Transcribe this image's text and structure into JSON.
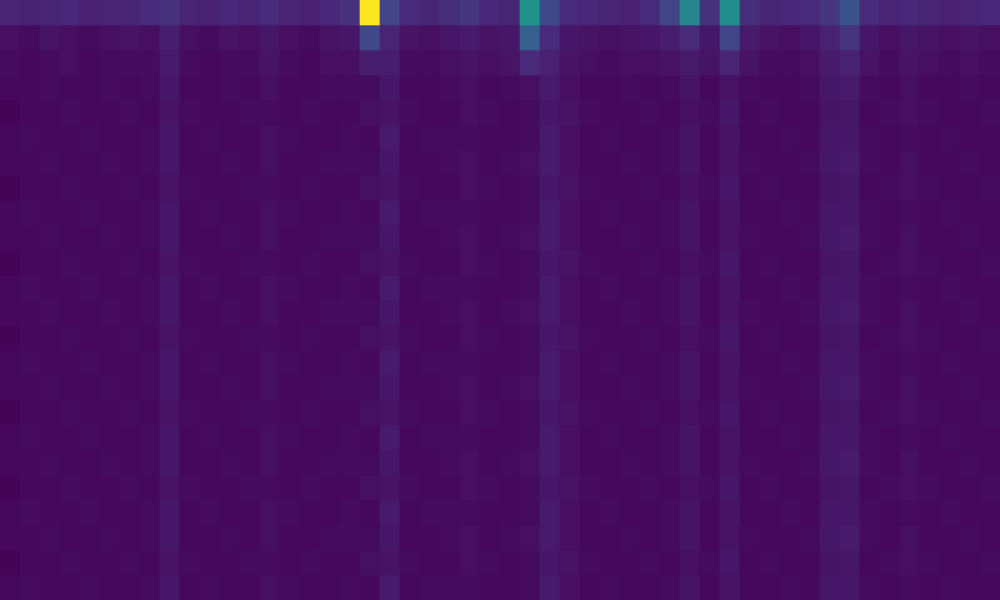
{
  "chart_data": {
    "type": "heatmap",
    "color": "viridis",
    "color_range": [
      0,
      1
    ],
    "tick_labels": false,
    "grid": false,
    "cells": [
      [
        0.1,
        0.09,
        0.1,
        0.11,
        0.09,
        0.1,
        0.1,
        0.12,
        0.14,
        0.1,
        0.09,
        0.11,
        0.1,
        0.12,
        0.1,
        0.09,
        0.11,
        0.14,
        1.0,
        0.2,
        0.12,
        0.1,
        0.13,
        0.15,
        0.11,
        0.1,
        0.5,
        0.22,
        0.12,
        0.11,
        0.1,
        0.09,
        0.12,
        0.2,
        0.45,
        0.14,
        0.48,
        0.13,
        0.1,
        0.11,
        0.12,
        0.16,
        0.25,
        0.12,
        0.1,
        0.11,
        0.1,
        0.09,
        0.1,
        0.11
      ],
      [
        0.04,
        0.03,
        0.05,
        0.04,
        0.03,
        0.04,
        0.05,
        0.04,
        0.08,
        0.04,
        0.03,
        0.05,
        0.04,
        0.06,
        0.04,
        0.03,
        0.05,
        0.06,
        0.22,
        0.1,
        0.05,
        0.04,
        0.06,
        0.07,
        0.05,
        0.06,
        0.3,
        0.12,
        0.06,
        0.05,
        0.04,
        0.05,
        0.06,
        0.08,
        0.12,
        0.06,
        0.2,
        0.07,
        0.05,
        0.04,
        0.06,
        0.09,
        0.15,
        0.06,
        0.04,
        0.06,
        0.05,
        0.04,
        0.05,
        0.04
      ],
      [
        0.03,
        0.02,
        0.03,
        0.04,
        0.02,
        0.03,
        0.03,
        0.03,
        0.07,
        0.03,
        0.02,
        0.03,
        0.03,
        0.05,
        0.03,
        0.02,
        0.04,
        0.04,
        0.08,
        0.08,
        0.03,
        0.03,
        0.04,
        0.05,
        0.04,
        0.05,
        0.12,
        0.09,
        0.05,
        0.04,
        0.03,
        0.04,
        0.04,
        0.05,
        0.07,
        0.05,
        0.1,
        0.05,
        0.03,
        0.03,
        0.04,
        0.07,
        0.09,
        0.05,
        0.03,
        0.05,
        0.04,
        0.03,
        0.04,
        0.03
      ],
      [
        0.02,
        0.02,
        0.03,
        0.02,
        0.02,
        0.03,
        0.02,
        0.03,
        0.06,
        0.02,
        0.02,
        0.03,
        0.02,
        0.04,
        0.02,
        0.02,
        0.03,
        0.03,
        0.03,
        0.06,
        0.02,
        0.02,
        0.03,
        0.04,
        0.02,
        0.03,
        0.04,
        0.07,
        0.04,
        0.02,
        0.02,
        0.03,
        0.02,
        0.03,
        0.05,
        0.02,
        0.05,
        0.03,
        0.02,
        0.02,
        0.03,
        0.06,
        0.07,
        0.03,
        0.02,
        0.04,
        0.02,
        0.02,
        0.03,
        0.02
      ],
      [
        0.01,
        0.02,
        0.02,
        0.03,
        0.02,
        0.02,
        0.03,
        0.02,
        0.05,
        0.03,
        0.02,
        0.02,
        0.03,
        0.03,
        0.02,
        0.03,
        0.02,
        0.02,
        0.04,
        0.05,
        0.03,
        0.02,
        0.02,
        0.04,
        0.03,
        0.02,
        0.03,
        0.06,
        0.05,
        0.03,
        0.02,
        0.02,
        0.03,
        0.02,
        0.04,
        0.03,
        0.06,
        0.02,
        0.03,
        0.02,
        0.02,
        0.05,
        0.06,
        0.02,
        0.03,
        0.04,
        0.03,
        0.02,
        0.02,
        0.03
      ],
      [
        0.02,
        0.03,
        0.02,
        0.02,
        0.03,
        0.02,
        0.02,
        0.03,
        0.06,
        0.02,
        0.03,
        0.02,
        0.02,
        0.04,
        0.03,
        0.02,
        0.02,
        0.03,
        0.02,
        0.07,
        0.02,
        0.03,
        0.03,
        0.03,
        0.02,
        0.02,
        0.03,
        0.07,
        0.04,
        0.02,
        0.03,
        0.02,
        0.02,
        0.03,
        0.05,
        0.02,
        0.05,
        0.02,
        0.02,
        0.03,
        0.02,
        0.06,
        0.06,
        0.03,
        0.02,
        0.03,
        0.02,
        0.03,
        0.02,
        0.02
      ],
      [
        0.02,
        0.02,
        0.03,
        0.02,
        0.02,
        0.03,
        0.02,
        0.03,
        0.06,
        0.02,
        0.02,
        0.03,
        0.02,
        0.04,
        0.02,
        0.02,
        0.03,
        0.03,
        0.03,
        0.06,
        0.02,
        0.02,
        0.03,
        0.04,
        0.02,
        0.03,
        0.04,
        0.07,
        0.04,
        0.02,
        0.02,
        0.03,
        0.02,
        0.03,
        0.05,
        0.02,
        0.05,
        0.03,
        0.02,
        0.02,
        0.03,
        0.06,
        0.07,
        0.03,
        0.02,
        0.04,
        0.02,
        0.02,
        0.03,
        0.02
      ],
      [
        0.01,
        0.02,
        0.02,
        0.03,
        0.02,
        0.02,
        0.03,
        0.02,
        0.05,
        0.03,
        0.02,
        0.02,
        0.03,
        0.03,
        0.02,
        0.03,
        0.02,
        0.02,
        0.04,
        0.05,
        0.03,
        0.02,
        0.02,
        0.04,
        0.03,
        0.02,
        0.03,
        0.06,
        0.05,
        0.03,
        0.02,
        0.02,
        0.03,
        0.02,
        0.04,
        0.03,
        0.06,
        0.02,
        0.03,
        0.02,
        0.02,
        0.05,
        0.06,
        0.02,
        0.03,
        0.04,
        0.03,
        0.02,
        0.02,
        0.03
      ],
      [
        0.02,
        0.03,
        0.02,
        0.02,
        0.03,
        0.02,
        0.02,
        0.03,
        0.06,
        0.02,
        0.03,
        0.02,
        0.02,
        0.04,
        0.03,
        0.02,
        0.02,
        0.03,
        0.02,
        0.07,
        0.02,
        0.03,
        0.03,
        0.03,
        0.02,
        0.02,
        0.03,
        0.07,
        0.04,
        0.02,
        0.03,
        0.02,
        0.02,
        0.03,
        0.05,
        0.02,
        0.05,
        0.02,
        0.02,
        0.03,
        0.02,
        0.06,
        0.06,
        0.03,
        0.02,
        0.03,
        0.02,
        0.03,
        0.02,
        0.02
      ],
      [
        0.02,
        0.02,
        0.03,
        0.02,
        0.02,
        0.03,
        0.02,
        0.03,
        0.06,
        0.02,
        0.02,
        0.03,
        0.02,
        0.04,
        0.02,
        0.02,
        0.03,
        0.03,
        0.03,
        0.06,
        0.02,
        0.02,
        0.03,
        0.04,
        0.02,
        0.03,
        0.04,
        0.07,
        0.04,
        0.02,
        0.02,
        0.03,
        0.02,
        0.03,
        0.05,
        0.02,
        0.05,
        0.03,
        0.02,
        0.02,
        0.03,
        0.06,
        0.07,
        0.03,
        0.02,
        0.04,
        0.02,
        0.02,
        0.03,
        0.02
      ],
      [
        0.01,
        0.02,
        0.02,
        0.03,
        0.02,
        0.02,
        0.03,
        0.02,
        0.05,
        0.03,
        0.02,
        0.02,
        0.03,
        0.03,
        0.02,
        0.03,
        0.02,
        0.02,
        0.04,
        0.05,
        0.03,
        0.02,
        0.02,
        0.04,
        0.03,
        0.02,
        0.03,
        0.06,
        0.05,
        0.03,
        0.02,
        0.02,
        0.03,
        0.02,
        0.04,
        0.03,
        0.06,
        0.02,
        0.03,
        0.02,
        0.02,
        0.05,
        0.06,
        0.02,
        0.03,
        0.04,
        0.03,
        0.02,
        0.02,
        0.03
      ],
      [
        0.02,
        0.03,
        0.02,
        0.02,
        0.03,
        0.02,
        0.02,
        0.03,
        0.06,
        0.02,
        0.03,
        0.02,
        0.02,
        0.04,
        0.03,
        0.02,
        0.02,
        0.03,
        0.02,
        0.07,
        0.02,
        0.03,
        0.03,
        0.03,
        0.02,
        0.02,
        0.03,
        0.07,
        0.04,
        0.02,
        0.03,
        0.02,
        0.02,
        0.03,
        0.05,
        0.02,
        0.05,
        0.02,
        0.02,
        0.03,
        0.02,
        0.06,
        0.06,
        0.03,
        0.02,
        0.03,
        0.02,
        0.03,
        0.02,
        0.02
      ],
      [
        0.02,
        0.02,
        0.03,
        0.02,
        0.02,
        0.03,
        0.02,
        0.03,
        0.06,
        0.02,
        0.02,
        0.03,
        0.02,
        0.04,
        0.02,
        0.02,
        0.03,
        0.03,
        0.03,
        0.06,
        0.02,
        0.02,
        0.03,
        0.04,
        0.02,
        0.03,
        0.04,
        0.07,
        0.04,
        0.02,
        0.02,
        0.03,
        0.02,
        0.03,
        0.05,
        0.02,
        0.05,
        0.03,
        0.02,
        0.02,
        0.03,
        0.06,
        0.07,
        0.03,
        0.02,
        0.04,
        0.02,
        0.02,
        0.03,
        0.02
      ],
      [
        0.01,
        0.02,
        0.02,
        0.03,
        0.02,
        0.02,
        0.03,
        0.02,
        0.05,
        0.03,
        0.02,
        0.02,
        0.03,
        0.03,
        0.02,
        0.03,
        0.02,
        0.02,
        0.04,
        0.05,
        0.03,
        0.02,
        0.02,
        0.04,
        0.03,
        0.02,
        0.03,
        0.06,
        0.05,
        0.03,
        0.02,
        0.02,
        0.03,
        0.02,
        0.04,
        0.03,
        0.06,
        0.02,
        0.03,
        0.02,
        0.02,
        0.05,
        0.06,
        0.02,
        0.03,
        0.04,
        0.03,
        0.02,
        0.02,
        0.03
      ],
      [
        0.02,
        0.03,
        0.02,
        0.02,
        0.03,
        0.02,
        0.02,
        0.03,
        0.06,
        0.02,
        0.03,
        0.02,
        0.02,
        0.04,
        0.03,
        0.02,
        0.02,
        0.03,
        0.02,
        0.07,
        0.02,
        0.03,
        0.03,
        0.03,
        0.02,
        0.02,
        0.03,
        0.07,
        0.04,
        0.02,
        0.03,
        0.02,
        0.02,
        0.03,
        0.05,
        0.02,
        0.05,
        0.02,
        0.02,
        0.03,
        0.02,
        0.06,
        0.06,
        0.03,
        0.02,
        0.03,
        0.02,
        0.03,
        0.02,
        0.02
      ],
      [
        0.02,
        0.02,
        0.03,
        0.02,
        0.02,
        0.03,
        0.02,
        0.03,
        0.06,
        0.02,
        0.02,
        0.03,
        0.02,
        0.04,
        0.02,
        0.02,
        0.03,
        0.03,
        0.03,
        0.06,
        0.02,
        0.02,
        0.03,
        0.04,
        0.02,
        0.03,
        0.04,
        0.07,
        0.04,
        0.02,
        0.02,
        0.03,
        0.02,
        0.03,
        0.05,
        0.02,
        0.05,
        0.03,
        0.02,
        0.02,
        0.03,
        0.06,
        0.07,
        0.03,
        0.02,
        0.04,
        0.02,
        0.02,
        0.03,
        0.02
      ],
      [
        0.01,
        0.02,
        0.02,
        0.03,
        0.02,
        0.02,
        0.03,
        0.02,
        0.05,
        0.03,
        0.02,
        0.02,
        0.03,
        0.03,
        0.02,
        0.03,
        0.02,
        0.02,
        0.04,
        0.05,
        0.03,
        0.02,
        0.02,
        0.04,
        0.03,
        0.02,
        0.03,
        0.06,
        0.05,
        0.03,
        0.02,
        0.02,
        0.03,
        0.02,
        0.04,
        0.03,
        0.06,
        0.02,
        0.03,
        0.02,
        0.02,
        0.05,
        0.06,
        0.02,
        0.03,
        0.04,
        0.03,
        0.02,
        0.02,
        0.03
      ],
      [
        0.02,
        0.03,
        0.02,
        0.02,
        0.03,
        0.02,
        0.02,
        0.03,
        0.06,
        0.02,
        0.03,
        0.02,
        0.02,
        0.04,
        0.03,
        0.02,
        0.02,
        0.03,
        0.02,
        0.07,
        0.02,
        0.03,
        0.03,
        0.03,
        0.02,
        0.02,
        0.03,
        0.07,
        0.04,
        0.02,
        0.03,
        0.02,
        0.02,
        0.03,
        0.05,
        0.02,
        0.05,
        0.02,
        0.02,
        0.03,
        0.02,
        0.06,
        0.06,
        0.03,
        0.02,
        0.03,
        0.02,
        0.03,
        0.02,
        0.02
      ],
      [
        0.02,
        0.02,
        0.03,
        0.02,
        0.02,
        0.03,
        0.02,
        0.03,
        0.06,
        0.02,
        0.02,
        0.03,
        0.02,
        0.04,
        0.02,
        0.02,
        0.03,
        0.03,
        0.03,
        0.06,
        0.02,
        0.02,
        0.03,
        0.04,
        0.02,
        0.03,
        0.04,
        0.07,
        0.04,
        0.02,
        0.02,
        0.03,
        0.02,
        0.03,
        0.05,
        0.02,
        0.05,
        0.03,
        0.02,
        0.02,
        0.03,
        0.06,
        0.07,
        0.03,
        0.02,
        0.04,
        0.02,
        0.02,
        0.03,
        0.02
      ],
      [
        0.01,
        0.02,
        0.02,
        0.03,
        0.02,
        0.02,
        0.03,
        0.02,
        0.05,
        0.03,
        0.02,
        0.02,
        0.03,
        0.03,
        0.02,
        0.03,
        0.02,
        0.02,
        0.04,
        0.05,
        0.03,
        0.02,
        0.02,
        0.04,
        0.03,
        0.02,
        0.03,
        0.06,
        0.05,
        0.03,
        0.02,
        0.02,
        0.03,
        0.02,
        0.04,
        0.03,
        0.06,
        0.02,
        0.03,
        0.02,
        0.02,
        0.05,
        0.06,
        0.02,
        0.03,
        0.04,
        0.03,
        0.02,
        0.02,
        0.03
      ],
      [
        0.02,
        0.03,
        0.02,
        0.02,
        0.03,
        0.02,
        0.02,
        0.03,
        0.06,
        0.02,
        0.03,
        0.02,
        0.02,
        0.04,
        0.03,
        0.02,
        0.02,
        0.03,
        0.02,
        0.07,
        0.02,
        0.03,
        0.03,
        0.03,
        0.02,
        0.02,
        0.03,
        0.07,
        0.04,
        0.02,
        0.03,
        0.02,
        0.02,
        0.03,
        0.05,
        0.02,
        0.05,
        0.02,
        0.02,
        0.03,
        0.02,
        0.06,
        0.06,
        0.03,
        0.02,
        0.03,
        0.02,
        0.03,
        0.02,
        0.02
      ],
      [
        0.02,
        0.02,
        0.03,
        0.02,
        0.02,
        0.03,
        0.02,
        0.03,
        0.06,
        0.02,
        0.02,
        0.03,
        0.02,
        0.04,
        0.02,
        0.02,
        0.03,
        0.03,
        0.03,
        0.06,
        0.02,
        0.02,
        0.03,
        0.04,
        0.02,
        0.03,
        0.04,
        0.07,
        0.04,
        0.02,
        0.02,
        0.03,
        0.02,
        0.03,
        0.05,
        0.02,
        0.05,
        0.03,
        0.02,
        0.02,
        0.03,
        0.06,
        0.07,
        0.03,
        0.02,
        0.04,
        0.02,
        0.02,
        0.03,
        0.02
      ],
      [
        0.01,
        0.02,
        0.02,
        0.03,
        0.02,
        0.02,
        0.03,
        0.02,
        0.05,
        0.03,
        0.02,
        0.02,
        0.03,
        0.03,
        0.02,
        0.03,
        0.02,
        0.02,
        0.04,
        0.05,
        0.03,
        0.02,
        0.02,
        0.04,
        0.03,
        0.02,
        0.03,
        0.06,
        0.05,
        0.03,
        0.02,
        0.02,
        0.03,
        0.02,
        0.04,
        0.03,
        0.06,
        0.02,
        0.03,
        0.02,
        0.02,
        0.05,
        0.06,
        0.02,
        0.03,
        0.04,
        0.03,
        0.02,
        0.02,
        0.03
      ],
      [
        0.02,
        0.03,
        0.02,
        0.02,
        0.03,
        0.02,
        0.02,
        0.03,
        0.06,
        0.02,
        0.03,
        0.02,
        0.02,
        0.04,
        0.03,
        0.02,
        0.02,
        0.03,
        0.02,
        0.07,
        0.02,
        0.03,
        0.03,
        0.03,
        0.02,
        0.02,
        0.03,
        0.07,
        0.04,
        0.02,
        0.03,
        0.02,
        0.02,
        0.03,
        0.05,
        0.02,
        0.05,
        0.02,
        0.02,
        0.03,
        0.02,
        0.06,
        0.06,
        0.03,
        0.02,
        0.03,
        0.02,
        0.03,
        0.02,
        0.02
      ]
    ]
  }
}
